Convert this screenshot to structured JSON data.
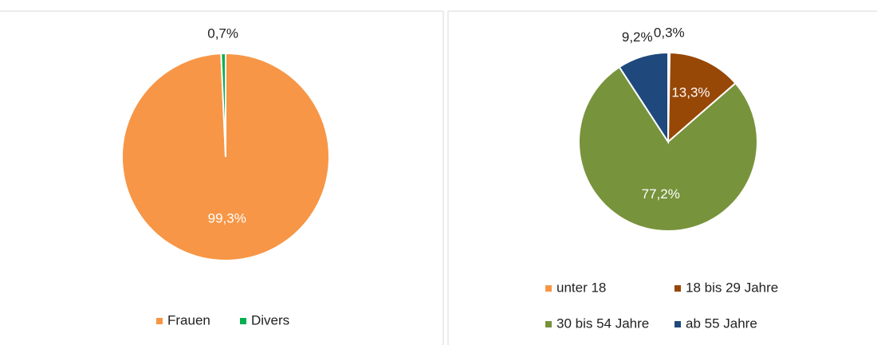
{
  "chart_data": [
    {
      "type": "pie",
      "categories": [
        "Frauen",
        "Divers"
      ],
      "values": [
        99.3,
        0.7
      ],
      "value_labels": [
        "99,3%",
        "0,7%"
      ],
      "colors": [
        "#f79646",
        "#00b050"
      ],
      "legend": "bottom"
    },
    {
      "type": "pie",
      "categories": [
        "unter 18",
        "18 bis 29 Jahre",
        "30 bis 54 Jahre",
        "ab 55 Jahre"
      ],
      "values": [
        0.3,
        13.3,
        77.2,
        9.2
      ],
      "value_labels": [
        "0,3%",
        "13,3%",
        "77,2%",
        "9,2%"
      ],
      "colors": [
        "#f79646",
        "#974706",
        "#77933c",
        "#1f497d"
      ],
      "legend": "bottom"
    }
  ]
}
